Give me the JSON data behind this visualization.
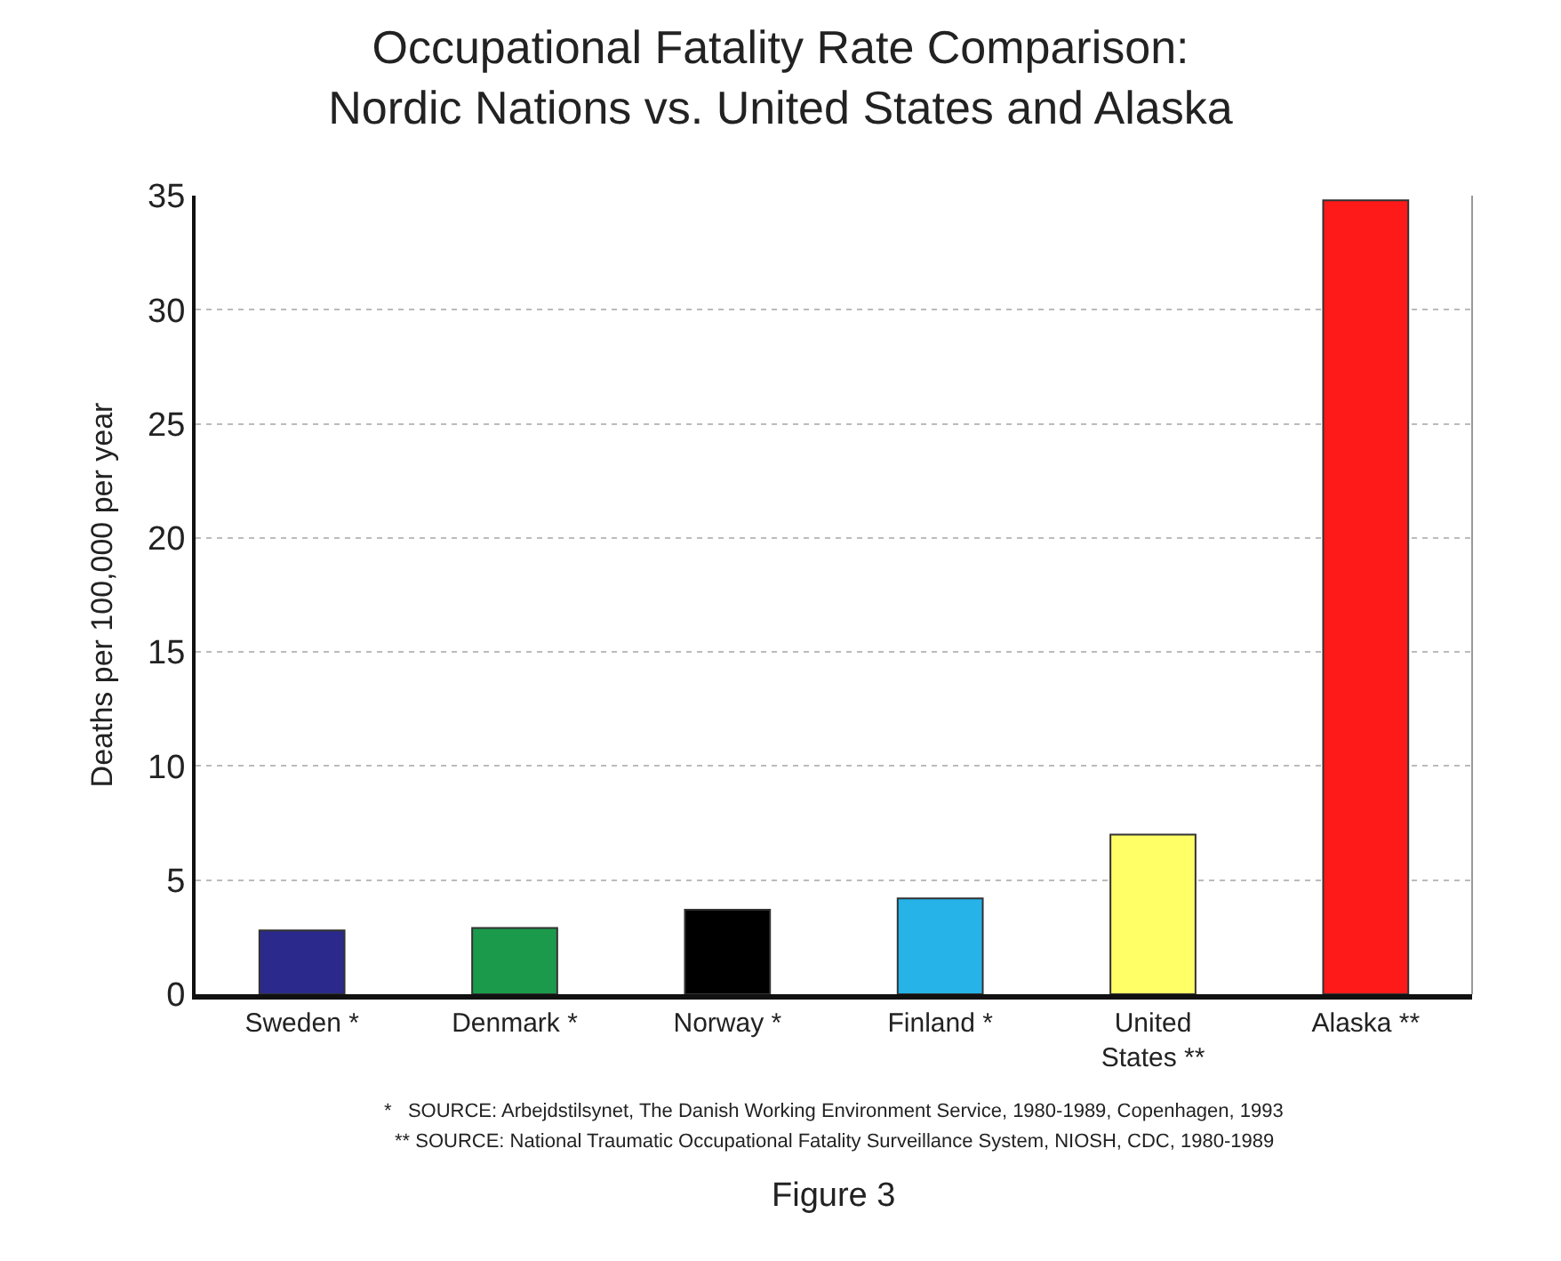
{
  "chart_data": {
    "type": "bar",
    "title": "Occupational Fatality Rate Comparison:\nNordic Nations vs. United States and Alaska",
    "ylabel": "Deaths per 100,000 per year",
    "categories": [
      "Sweden *",
      "Denmark *",
      "Norway *",
      "Finland *",
      "United\nStates **",
      "Alaska **"
    ],
    "values": [
      2.8,
      2.9,
      3.7,
      4.2,
      7.0,
      34.8
    ],
    "colors": [
      "#2b2a8c",
      "#1a9a4a",
      "#000000",
      "#25b3e8",
      "#ffff66",
      "#ff1a1a"
    ],
    "ylim": [
      0,
      35
    ],
    "yticks": [
      0,
      5,
      10,
      15,
      20,
      25,
      30,
      35
    ],
    "grid": "y",
    "annotations": [
      "*   SOURCE: Arbejdstilsynet, The Danish Working Environment Service, 1980-1989, Copenhagen, 1993",
      "** SOURCE: National Traumatic Occupational Fatality Surveillance System, NIOSH, CDC, 1980-1989",
      "Figure 3"
    ]
  }
}
